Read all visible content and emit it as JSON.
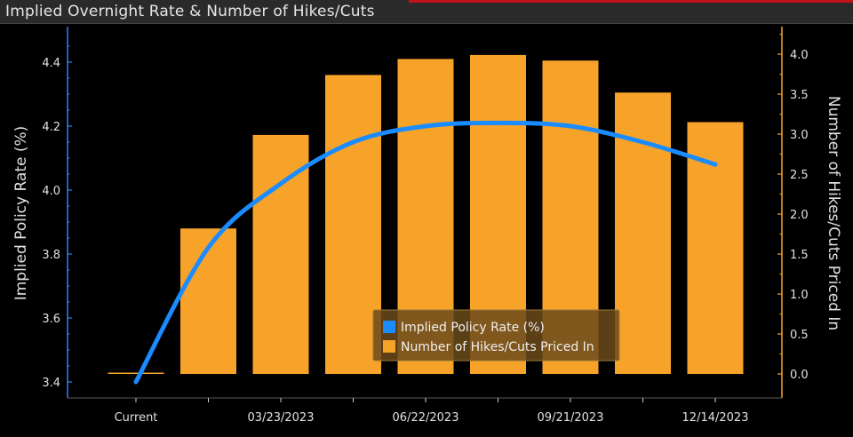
{
  "window": {
    "title": "Implied Overnight Rate & Number of Hikes/Cuts"
  },
  "colors": {
    "bar": "#f7a329",
    "line": "#1a8cff",
    "axis_left": "#2f7fff",
    "axis_right": "#f7a329",
    "background": "#000000",
    "text": "#e0e0e0"
  },
  "chart_data": {
    "type": "bar",
    "title": "Implied Overnight Rate & Number of Hikes/Cuts",
    "categories": [
      "Current",
      "",
      "03/23/2023",
      "",
      "06/22/2023",
      "",
      "09/21/2023",
      "",
      "12/14/2023"
    ],
    "series": [
      {
        "name": "Implied Policy Rate (%)",
        "type": "line",
        "axis": "left",
        "values": [
          3.4,
          3.82,
          4.02,
          4.15,
          4.2,
          4.21,
          4.2,
          4.15,
          4.08
        ]
      },
      {
        "name": "Number of Hikes/Cuts Priced In",
        "type": "bar",
        "axis": "right",
        "values": [
          0.0,
          1.82,
          2.99,
          3.74,
          3.94,
          3.99,
          3.92,
          3.52,
          3.15
        ]
      }
    ],
    "ylabel": "Implied Policy Rate (%)",
    "y2label": "Number of Hikes/Cuts Priced In",
    "ylim": [
      3.37,
      4.55
    ],
    "y2lim": [
      -0.1,
      4.4
    ],
    "yticks": [
      "3.4",
      "3.6",
      "3.8",
      "4.0",
      "4.2",
      "4.4"
    ],
    "y2ticks": [
      "0.0",
      "0.5",
      "1.0",
      "1.5",
      "2.0",
      "2.5",
      "3.0",
      "3.5",
      "4.0"
    ],
    "legend": {
      "position": "bottom-center",
      "entries": [
        "Implied Policy Rate (%)",
        "Number of Hikes/Cuts Priced In"
      ]
    },
    "grid": false
  }
}
